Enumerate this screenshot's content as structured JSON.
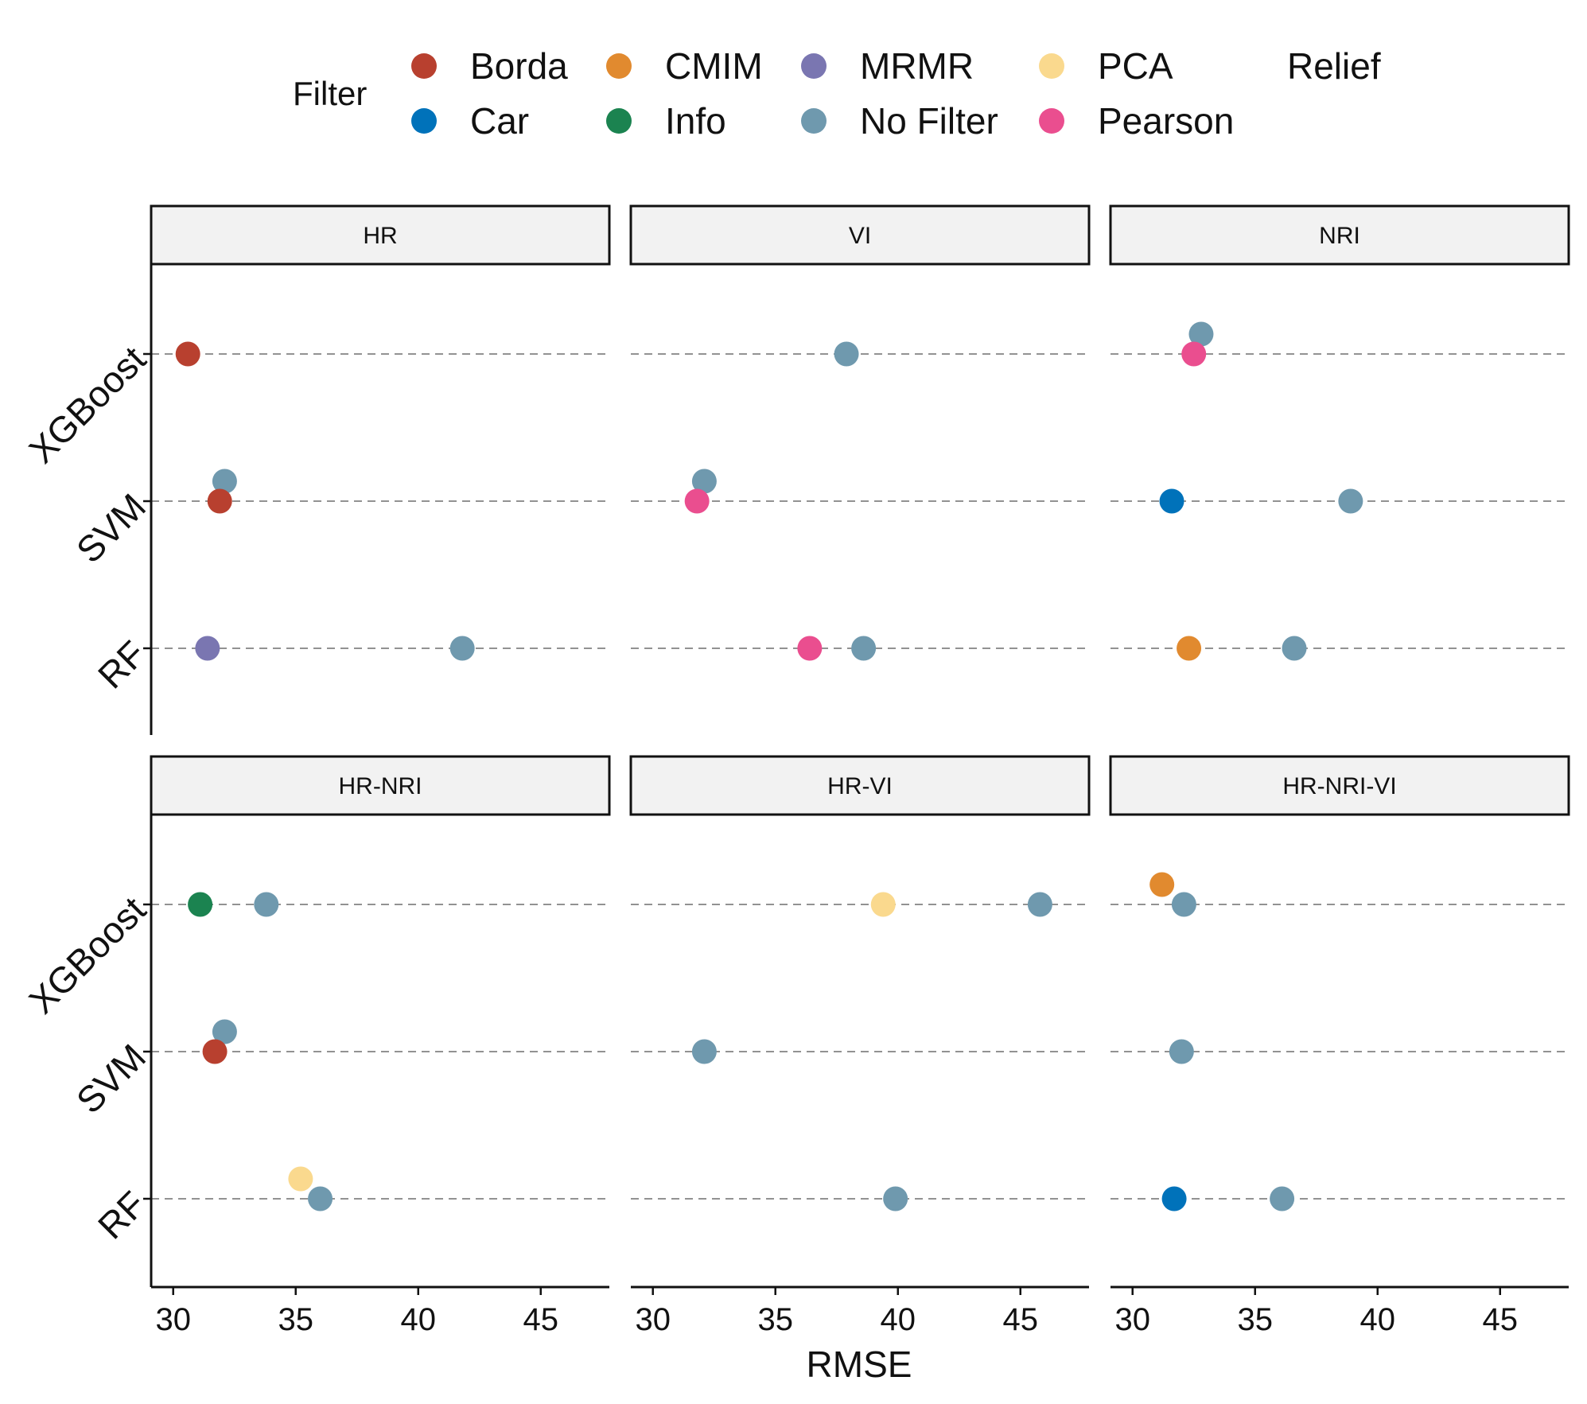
{
  "chart_data": {
    "type": "scatter",
    "xlabel": "RMSE",
    "xlim": [
      29.1,
      47.8
    ],
    "xticks": [
      30,
      35,
      40,
      45
    ],
    "ycategories": [
      "XGBoost",
      "SVM",
      "RF"
    ],
    "legend": {
      "title": "Filter",
      "placement": "top",
      "entries": [
        {
          "name": "Borda",
          "color": "#B8402F"
        },
        {
          "name": "CMIM",
          "color": "#E18A2F"
        },
        {
          "name": "MRMR",
          "color": "#7A76B1"
        },
        {
          "name": "PCA",
          "color": "#FAD98E"
        },
        {
          "name": "Relief",
          "color": null
        },
        {
          "name": "Car",
          "color": "#0072BA"
        },
        {
          "name": "Info",
          "color": "#1B8350"
        },
        {
          "name": "No Filter",
          "color": "#6F99AE"
        },
        {
          "name": "Pearson",
          "color": "#EA4E8F"
        }
      ]
    },
    "panels": [
      {
        "title": "HR",
        "points": [
          {
            "model": "XGBoost",
            "filter": "Borda",
            "x": 30.6
          },
          {
            "model": "SVM",
            "filter": "No Filter",
            "x": 32.1
          },
          {
            "model": "SVM",
            "filter": "Borda",
            "x": 31.9
          },
          {
            "model": "RF",
            "filter": "MRMR",
            "x": 31.4
          },
          {
            "model": "RF",
            "filter": "No Filter",
            "x": 41.8
          }
        ]
      },
      {
        "title": "VI",
        "points": [
          {
            "model": "XGBoost",
            "filter": "No Filter",
            "x": 37.9
          },
          {
            "model": "SVM",
            "filter": "No Filter",
            "x": 32.1
          },
          {
            "model": "SVM",
            "filter": "Pearson",
            "x": 31.8
          },
          {
            "model": "RF",
            "filter": "Pearson",
            "x": 36.4
          },
          {
            "model": "RF",
            "filter": "No Filter",
            "x": 38.6
          }
        ]
      },
      {
        "title": "NRI",
        "points": [
          {
            "model": "XGBoost",
            "filter": "No Filter",
            "x": 32.8
          },
          {
            "model": "XGBoost",
            "filter": "Pearson",
            "x": 32.5
          },
          {
            "model": "SVM",
            "filter": "Car",
            "x": 31.6
          },
          {
            "model": "SVM",
            "filter": "No Filter",
            "x": 38.9
          },
          {
            "model": "RF",
            "filter": "CMIM",
            "x": 32.3
          },
          {
            "model": "RF",
            "filter": "No Filter",
            "x": 36.6
          }
        ]
      },
      {
        "title": "HR-NRI",
        "points": [
          {
            "model": "XGBoost",
            "filter": "Info",
            "x": 31.1
          },
          {
            "model": "XGBoost",
            "filter": "No Filter",
            "x": 33.8
          },
          {
            "model": "SVM",
            "filter": "No Filter",
            "x": 32.1
          },
          {
            "model": "SVM",
            "filter": "Borda",
            "x": 31.7
          },
          {
            "model": "RF",
            "filter": "PCA",
            "x": 35.2
          },
          {
            "model": "RF",
            "filter": "No Filter",
            "x": 36.0
          }
        ]
      },
      {
        "title": "HR-VI",
        "points": [
          {
            "model": "XGBoost",
            "filter": "PCA",
            "x": 39.4
          },
          {
            "model": "XGBoost",
            "filter": "No Filter",
            "x": 45.8
          },
          {
            "model": "SVM",
            "filter": "No Filter",
            "x": 32.1
          },
          {
            "model": "RF",
            "filter": "No Filter",
            "x": 39.9
          }
        ]
      },
      {
        "title": "HR-NRI-VI",
        "points": [
          {
            "model": "XGBoost",
            "filter": "CMIM",
            "x": 31.2
          },
          {
            "model": "XGBoost",
            "filter": "No Filter",
            "x": 32.1
          },
          {
            "model": "SVM",
            "filter": "No Filter",
            "x": 32.0
          },
          {
            "model": "RF",
            "filter": "Car",
            "x": 31.7
          },
          {
            "model": "RF",
            "filter": "No Filter",
            "x": 36.1
          }
        ]
      }
    ]
  }
}
